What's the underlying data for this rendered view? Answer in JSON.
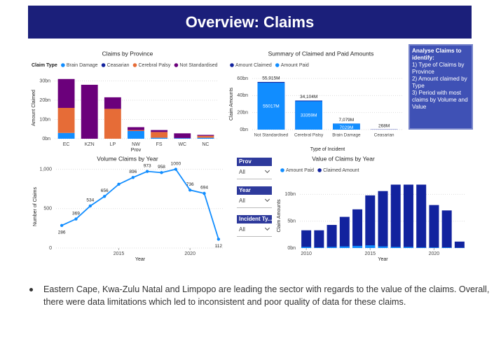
{
  "header": {
    "title": "Overview: Claims"
  },
  "note": {
    "heading": "Analyse Claims to identify:",
    "items": [
      "1) Type of Claims by Province",
      "2) Amount claimed by Type",
      "3) Period with most claims by Volume and Value"
    ]
  },
  "slicers": [
    {
      "label": "Prov",
      "value": "All"
    },
    {
      "label": "Year",
      "value": "All"
    },
    {
      "label": "Incident Ty...",
      "value": "All"
    }
  ],
  "bullet": "Eastern Cape, Kwa-Zulu Natal and Limpopo are leading the sector with regards to the value of the claims. Overall, there were data limitations which led to inconsistent and poor quality of data for these claims.",
  "chart_data": [
    {
      "type": "bar",
      "stacked": true,
      "title": "Claims by Province",
      "legend_title": "Claim Type",
      "x_label": "Prov",
      "y_label": "Amount Claimed",
      "categories": [
        "EC",
        "KZN",
        "LP",
        "NW",
        "FS",
        "WC",
        "NC"
      ],
      "series": [
        {
          "name": "Brain Damage",
          "color": "#118dff",
          "values": [
            3,
            0,
            0,
            4,
            0.5,
            0.3,
            0.5
          ]
        },
        {
          "name": "Ceasarian",
          "color": "#12239e",
          "values": [
            0,
            0,
            0,
            0,
            0,
            0,
            0
          ]
        },
        {
          "name": "Cerebral Palsy",
          "color": "#e66c37",
          "values": [
            13,
            0,
            15.5,
            0.5,
            3,
            0,
            1
          ]
        },
        {
          "name": "Not Standardised",
          "color": "#6b007b",
          "values": [
            15,
            28,
            6,
            1.5,
            1,
            2.5,
            0.5
          ]
        }
      ],
      "ylim": [
        0,
        32
      ],
      "yticks": [
        {
          "value": 0,
          "label": "0bn"
        },
        {
          "value": 10,
          "label": "10bn"
        },
        {
          "value": 20,
          "label": "20bn"
        },
        {
          "value": 30,
          "label": "30bn"
        }
      ],
      "grid": true
    },
    {
      "type": "bar",
      "stacked": false,
      "title": "Summary of Claimed and Paid Amounts",
      "x_label": "Type of Incident",
      "y_label": "Claim Amounts",
      "categories": [
        "Not Standardised",
        "Cerebral Palsy",
        "Brain Damage",
        "Ceasarian"
      ],
      "series": [
        {
          "name": "Amount Claimed",
          "color": "#12239e",
          "values": [
            55915,
            34104,
            7079,
            268
          ],
          "value_labels": [
            "55,915M",
            "34,104M",
            "7,079M",
            "268M"
          ]
        },
        {
          "name": "Amount Paid",
          "color": "#118dff",
          "values": [
            55017,
            33359,
            7029,
            null
          ],
          "value_labels": [
            "55017M",
            "33359M",
            "7029M",
            null
          ]
        }
      ],
      "ylim": [
        0,
        60000
      ],
      "yticks": [
        {
          "value": 0,
          "label": "0bn"
        },
        {
          "value": 20000,
          "label": "20bn"
        },
        {
          "value": 40000,
          "label": "40bn"
        },
        {
          "value": 60000,
          "label": "60bn"
        }
      ],
      "grid": true
    },
    {
      "type": "line",
      "title": "Volume Claims by Year",
      "x_label": "Year",
      "y_label": "Number of Claims",
      "color": "#118dff",
      "x": [
        2011,
        2012,
        2013,
        2014,
        2015,
        2016,
        2017,
        2018,
        2019,
        2020,
        2021,
        2022
      ],
      "values": [
        286,
        369,
        534,
        656,
        810,
        896,
        973,
        958,
        1000,
        736,
        694,
        112
      ],
      "value_labels": [
        "286",
        "369",
        "534",
        "656",
        null,
        "896",
        "973",
        "958",
        "1000",
        "736",
        "694",
        "112"
      ],
      "xlim": [
        2010.6,
        2022.4
      ],
      "xticks": [
        2015,
        2020
      ],
      "ylim": [
        0,
        1050
      ],
      "yticks": [
        0,
        500,
        {
          "value": 1000,
          "label": "1,000"
        }
      ],
      "grid": true
    },
    {
      "type": "bar",
      "stacked": false,
      "title": "Value of Claims by Year",
      "x_label": "Year",
      "y_label": "Claim Amounts",
      "x": [
        2010,
        2011,
        2012,
        2013,
        2014,
        2015,
        2016,
        2017,
        2018,
        2019,
        2020,
        2021,
        2022
      ],
      "series": [
        {
          "name": "Amount Paid",
          "color": "#118dff",
          "values": [
            0.2,
            0.1,
            0.2,
            0.3,
            0.4,
            0.5,
            0.3,
            0.2,
            0.2,
            0.1,
            0.1,
            0.1,
            0.05
          ]
        },
        {
          "name": "Claimed Amount",
          "color": "#12239e",
          "values": [
            3.3,
            3.3,
            4.3,
            5.8,
            7.2,
            9.8,
            10.6,
            11.8,
            11.8,
            11.8,
            8.0,
            7.0,
            1.2
          ]
        }
      ],
      "draw_order": [
        1,
        0
      ],
      "xlim": [
        2009.5,
        2022.5
      ],
      "xticks": [
        2010,
        2015,
        2020
      ],
      "ylim": [
        0,
        12
      ],
      "yticks": [
        {
          "value": 0,
          "label": "0bn"
        },
        {
          "value": 5,
          "label": "5bn"
        },
        {
          "value": 10,
          "label": "10bn"
        }
      ],
      "grid": true
    }
  ]
}
